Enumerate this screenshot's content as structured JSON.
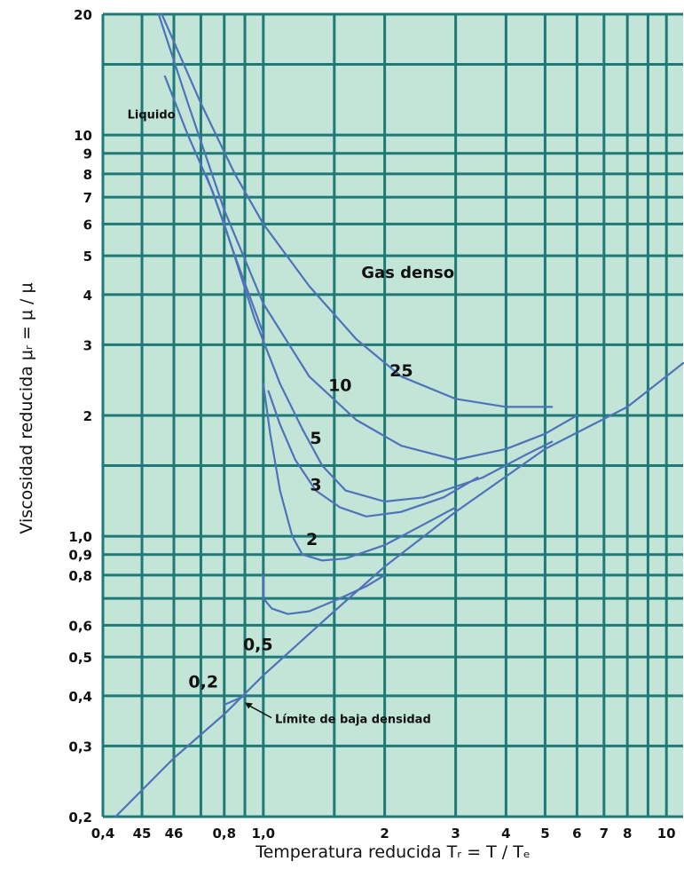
{
  "chart_data": {
    "type": "line",
    "title": "",
    "xlabel": "Temperatura reducida Tᵣ = T / Tₑ",
    "ylabel": "Viscosidad reducida μᵣ = μ / μ",
    "x_scale": "log",
    "y_scale": "log",
    "xlim": [
      0.4,
      11
    ],
    "ylim": [
      0.2,
      20
    ],
    "grid": true,
    "x_tick_values": [
      0.4,
      0.5,
      0.6,
      0.7,
      0.8,
      0.9,
      1.0,
      1.5,
      2,
      3,
      4,
      5,
      6,
      7,
      8,
      9,
      10
    ],
    "x_tick_labels": [
      {
        "value": 0.4,
        "label": "0,4"
      },
      {
        "value": 0.5,
        "label": "45"
      },
      {
        "value": 0.6,
        "label": "46"
      },
      {
        "value": 0.8,
        "label": "0,8"
      },
      {
        "value": 1.0,
        "label": "1,0"
      },
      {
        "value": 2,
        "label": "2"
      },
      {
        "value": 3,
        "label": "3"
      },
      {
        "value": 4,
        "label": "4"
      },
      {
        "value": 5,
        "label": "5"
      },
      {
        "value": 6,
        "label": "6"
      },
      {
        "value": 7,
        "label": "7"
      },
      {
        "value": 8,
        "label": "8"
      },
      {
        "value": 10,
        "label": "10"
      }
    ],
    "y_tick_values": [
      0.2,
      0.3,
      0.4,
      0.5,
      0.6,
      0.7,
      0.8,
      0.9,
      1.0,
      1.5,
      2,
      3,
      4,
      5,
      6,
      7,
      8,
      9,
      10,
      15,
      20
    ],
    "y_tick_labels": [
      {
        "value": 0.2,
        "label": "0,2"
      },
      {
        "value": 0.3,
        "label": "0,3"
      },
      {
        "value": 0.4,
        "label": "0,4"
      },
      {
        "value": 0.5,
        "label": "0,5"
      },
      {
        "value": 0.6,
        "label": "0,6"
      },
      {
        "value": 0.8,
        "label": "0,8"
      },
      {
        "value": 0.9,
        "label": "0,9"
      },
      {
        "value": 1.0,
        "label": "1,0"
      },
      {
        "value": 2,
        "label": "2"
      },
      {
        "value": 3,
        "label": "3"
      },
      {
        "value": 4,
        "label": "4"
      },
      {
        "value": 5,
        "label": "5"
      },
      {
        "value": 6,
        "label": "6"
      },
      {
        "value": 7,
        "label": "7"
      },
      {
        "value": 8,
        "label": "8"
      },
      {
        "value": 9,
        "label": "9"
      },
      {
        "value": 10,
        "label": "10"
      },
      {
        "value": 20,
        "label": "20"
      }
    ],
    "series": [
      {
        "name": "Límite de baja densidad",
        "points": [
          [
            0.43,
            0.2
          ],
          [
            0.6,
            0.28
          ],
          [
            0.8,
            0.36
          ],
          [
            1.0,
            0.45
          ],
          [
            1.5,
            0.65
          ],
          [
            2,
            0.84
          ],
          [
            3,
            1.15
          ],
          [
            5,
            1.65
          ],
          [
            8,
            2.1
          ],
          [
            11,
            2.7
          ]
        ]
      },
      {
        "name": "0,2",
        "points": [
          [
            0.8,
            0.38
          ],
          [
            0.9,
            0.4
          ]
        ]
      },
      {
        "name": "0,5",
        "points": [
          [
            1.0,
            0.8
          ],
          [
            1.0,
            0.7
          ],
          [
            1.05,
            0.66
          ],
          [
            1.15,
            0.64
          ],
          [
            1.3,
            0.65
          ],
          [
            1.5,
            0.69
          ],
          [
            1.8,
            0.75
          ],
          [
            2,
            0.8
          ]
        ]
      },
      {
        "name": "2",
        "points": [
          [
            1.0,
            2.4
          ],
          [
            1.04,
            1.8
          ],
          [
            1.1,
            1.3
          ],
          [
            1.18,
            1.0
          ],
          [
            1.25,
            0.9
          ],
          [
            1.4,
            0.87
          ],
          [
            1.6,
            0.88
          ],
          [
            2,
            0.95
          ],
          [
            2.5,
            1.07
          ],
          [
            3,
            1.18
          ]
        ]
      },
      {
        "name": "3",
        "points": [
          [
            1.03,
            2.3
          ],
          [
            1.1,
            1.9
          ],
          [
            1.2,
            1.55
          ],
          [
            1.35,
            1.3
          ],
          [
            1.55,
            1.18
          ],
          [
            1.8,
            1.12
          ],
          [
            2.2,
            1.15
          ],
          [
            2.8,
            1.25
          ],
          [
            3.4,
            1.4
          ]
        ]
      },
      {
        "name": "5",
        "points": [
          [
            0.72,
            8.0
          ],
          [
            0.8,
            6.0
          ],
          [
            0.95,
            3.5
          ],
          [
            1.1,
            2.4
          ],
          [
            1.25,
            1.85
          ],
          [
            1.4,
            1.5
          ],
          [
            1.6,
            1.3
          ],
          [
            2,
            1.22
          ],
          [
            2.5,
            1.25
          ],
          [
            3.5,
            1.4
          ],
          [
            4.5,
            1.6
          ],
          [
            5.2,
            1.72
          ]
        ]
      },
      {
        "name": "10",
        "points": [
          [
            0.55,
            20
          ],
          [
            0.65,
            12
          ],
          [
            0.8,
            6.5
          ],
          [
            1.0,
            3.8
          ],
          [
            1.3,
            2.5
          ],
          [
            1.7,
            1.95
          ],
          [
            2.2,
            1.68
          ],
          [
            3,
            1.55
          ],
          [
            4,
            1.65
          ],
          [
            5,
            1.8
          ],
          [
            6,
            2.0
          ]
        ]
      },
      {
        "name": "25",
        "points": [
          [
            0.56,
            20
          ],
          [
            0.7,
            12
          ],
          [
            0.85,
            8
          ],
          [
            1.0,
            6
          ],
          [
            1.3,
            4.2
          ],
          [
            1.7,
            3.1
          ],
          [
            2.2,
            2.5
          ],
          [
            3,
            2.2
          ],
          [
            4,
            2.1
          ],
          [
            5.2,
            2.1
          ]
        ]
      },
      {
        "name": "Líquido",
        "points": [
          [
            0.57,
            14
          ],
          [
            0.65,
            10
          ],
          [
            0.75,
            7.2
          ],
          [
            0.85,
            5
          ],
          [
            1.0,
            3.2
          ]
        ]
      }
    ],
    "curve_labels": [
      {
        "text": "25",
        "x": 2.2,
        "y": 2.5
      },
      {
        "text": "10",
        "x": 1.55,
        "y": 2.3
      },
      {
        "text": "5",
        "x": 1.35,
        "y": 1.7
      },
      {
        "text": "3",
        "x": 1.35,
        "y": 1.3
      },
      {
        "text": "2",
        "x": 1.32,
        "y": 0.95
      },
      {
        "text": "0,5",
        "x": 0.97,
        "y": 0.52
      },
      {
        "text": "0,2",
        "x": 0.71,
        "y": 0.42
      }
    ],
    "region_labels": [
      {
        "text": "Liquido",
        "x": 0.46,
        "y": 11,
        "size": 13
      },
      {
        "text": "Gas denso",
        "x": 1.75,
        "y": 4.4,
        "size": 18
      }
    ],
    "annotation": {
      "text": "Límite de baja densidad",
      "x": 0.9,
      "y": 0.36,
      "arrow_to": [
        0.9,
        0.385
      ]
    },
    "colors": {
      "background": "#c3e5d8",
      "grid": "#1f7a77",
      "curve": "#4f72b8",
      "text": "#111111"
    }
  }
}
